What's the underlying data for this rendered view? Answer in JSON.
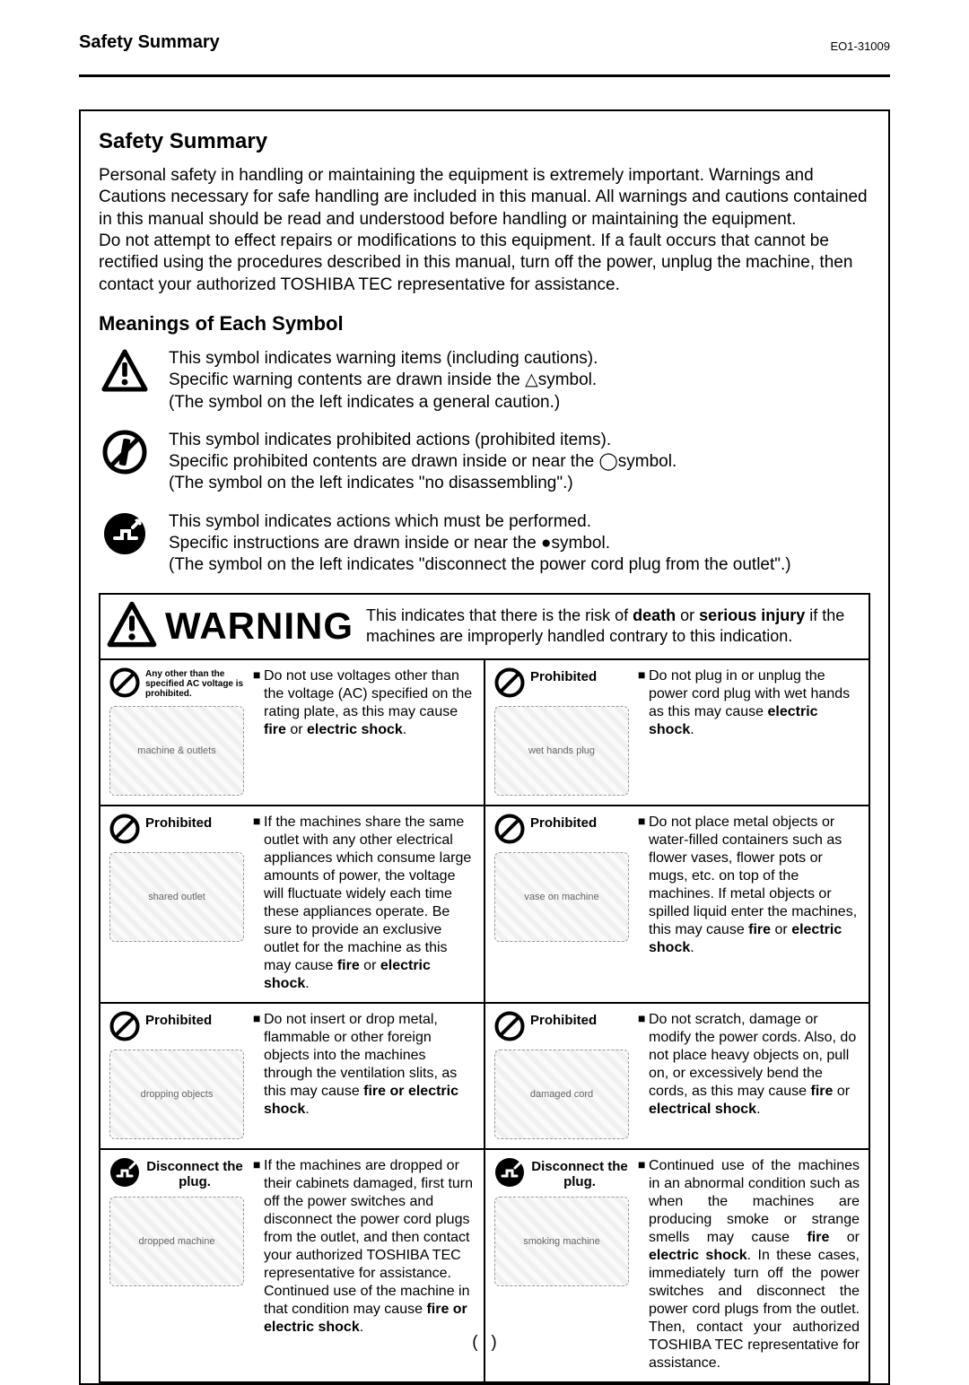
{
  "header": {
    "left": "Safety Summary",
    "right": "EO1-31009"
  },
  "section_title": "Safety Summary",
  "intro_html": "Personal safety in handling or maintaining the equipment is extremely important.  Warnings and Cautions necessary for safe handling are included in this manual.  All warnings and cautions contained in this manual should be read and understood before handling or maintaining the equipment.<br>Do not attempt to effect repairs or modifications to this equipment.  If a fault occurs that cannot be rectified using the procedures described in this manual, turn off the power, unplug the machine, then contact your authorized TOSHIBA TEC representative for assistance.",
  "subheading": "Meanings of Each Symbol",
  "symbol_rows": [
    {
      "icon": "warning-triangle",
      "text_html": "This symbol indicates warning items (including cautions).<br>Specific warning contents are drawn inside the △symbol.<br>(The symbol on the left indicates a general caution.)"
    },
    {
      "icon": "no-disassemble",
      "text_html": "This symbol indicates prohibited actions (prohibited items).<br>Specific prohibited contents are drawn inside or near the ◯symbol.<br>(The symbol on the left indicates \"no disassembling\".)"
    },
    {
      "icon": "unplug-action",
      "text_html": "This symbol indicates actions which must be performed.<br>Specific instructions are drawn inside or near the ●symbol.<br>(The symbol on the left indicates \"disconnect the power cord plug from the outlet\".)"
    }
  ],
  "warning_banner": {
    "word": "WARNING",
    "desc_html": "This indicates that there is the risk of <b>death</b> or <b>serious injury</b> if the machines are improperly handled contrary to this indication."
  },
  "grid": [
    [
      {
        "icon": "prohibit",
        "label_html": "Any other than the specified AC voltage is prohibited.",
        "label_tiny": true,
        "text_html": "Do not use voltages other than the voltage (AC) specified on the rating plate, as this may cause <b>fire</b> or <b>electric shock</b>.",
        "illus": "machine & outlets"
      },
      {
        "icon": "prohibit",
        "label_html": "Prohibited",
        "text_html": "Do not plug in or unplug the power cord plug with wet hands as this may cause <b>electric shock</b>.",
        "illus": "wet hands plug"
      }
    ],
    [
      {
        "icon": "prohibit",
        "label_html": "Prohibited",
        "text_html": "If the machines share the same outlet with any other electrical appliances which consume large amounts of power, the voltage will fluctuate widely each time these appliances operate.  Be sure to provide an exclusive outlet for the machine as this may cause <b>fire</b> or <b>electric shock</b>.",
        "illus": "shared outlet"
      },
      {
        "icon": "prohibit",
        "label_html": "Prohibited",
        "text_html": "Do not place metal objects or water-filled containers such as flower vases, flower pots or mugs, etc. on top of the machines.  If metal objects or spilled liquid enter the machines, this may cause <b>fire</b> or <b>electric shock</b>.",
        "illus": "vase on machine"
      }
    ],
    [
      {
        "icon": "prohibit",
        "label_html": "Prohibited",
        "text_html": "Do not insert or drop metal, flammable or other foreign objects into the machines through the ventilation slits, as this may cause <b>fire or electric shock</b>.",
        "illus": "dropping objects"
      },
      {
        "icon": "prohibit",
        "label_html": "Prohibited",
        "text_html": "Do not scratch, damage or modify the power cords.  Also, do not place heavy objects on, pull on, or excessively bend the cords, as this may cause <b>fire</b> or <b>electrical shock</b>.",
        "illus": "damaged cord"
      }
    ],
    [
      {
        "icon": "unplug",
        "label_html": "Disconnect the plug.",
        "text_html": "If the machines are dropped or their cabinets damaged, first turn off the power switches and disconnect the power cord plugs from the outlet, and then contact your authorized TOSHIBA TEC representative for assistance.  Continued use of the machine in that condition may cause <b>fire or electric shock</b>.",
        "illus": "dropped machine"
      },
      {
        "icon": "unplug",
        "label_html": "Disconnect the plug.",
        "text_html": "Continued use of the machines in an abnormal condition such as when the machines are producing smoke or strange smells may cause <b>fire</b> or <b>electric shock</b>.  In these cases, immediately turn off the power switches and disconnect the power cord plugs from the outlet.  Then, contact your authorized TOSHIBA TEC representative for assistance.",
        "illus": "smoking machine",
        "justify": true
      }
    ]
  ],
  "page_number": "( i )",
  "colors": {
    "text": "#000000",
    "bg": "#ffffff",
    "border": "#000000"
  }
}
